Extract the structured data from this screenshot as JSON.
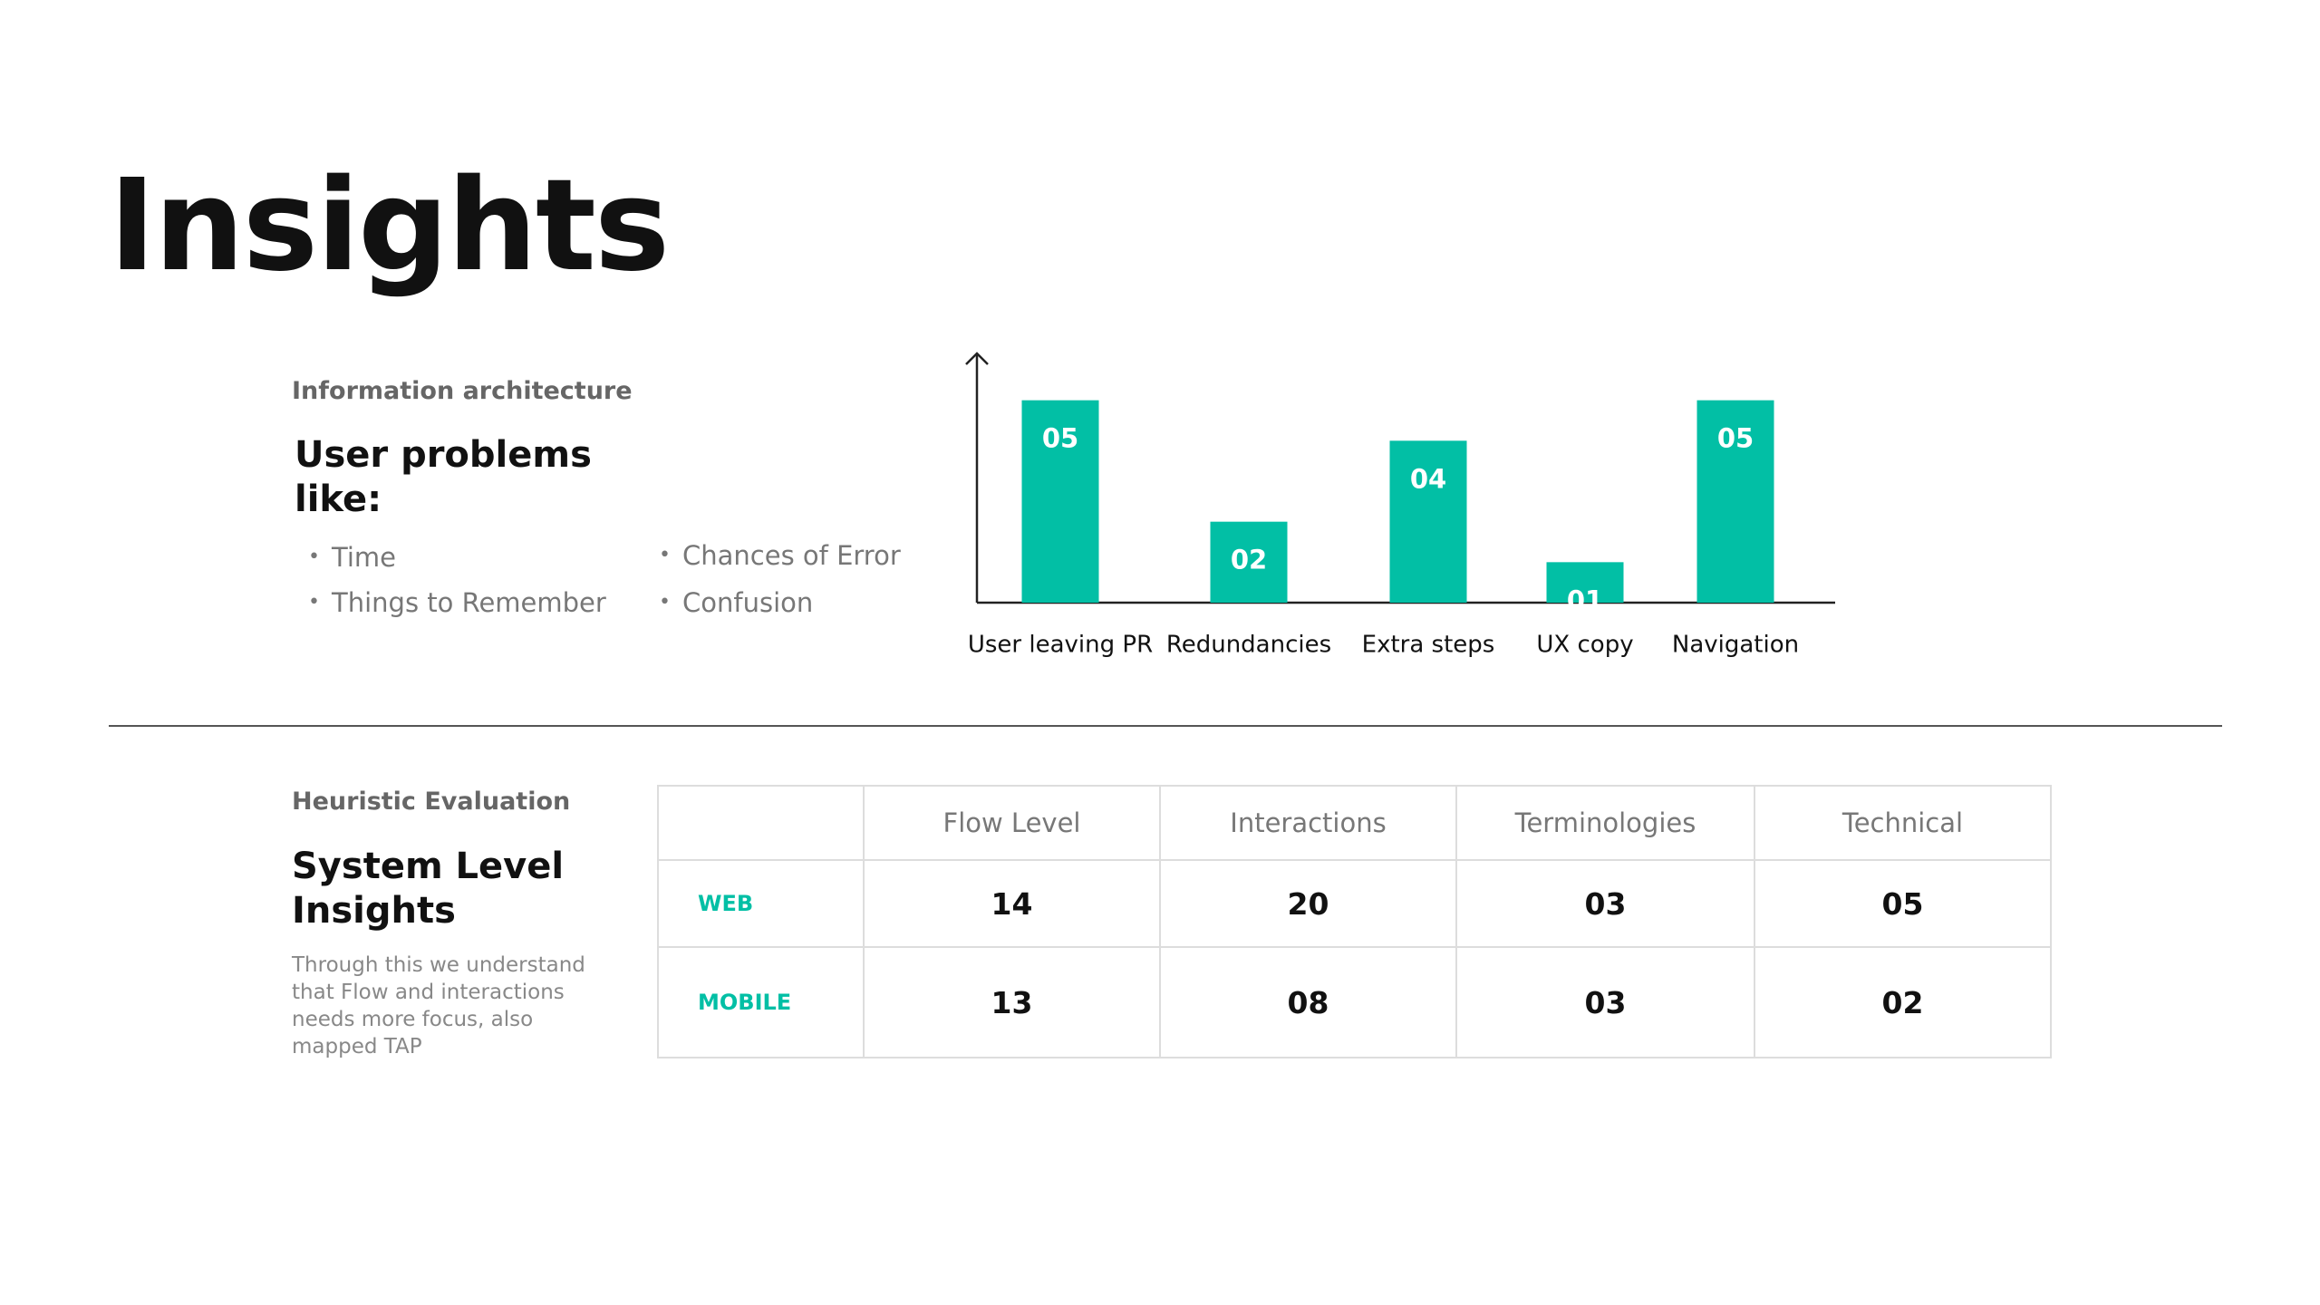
{
  "title": "Insights",
  "problems": {
    "eyebrow": "Information architecture",
    "heading": "User problems like:",
    "bullets": [
      "Time",
      "Things to Remember",
      "Chances of Error",
      "Confusion"
    ]
  },
  "chart_data": {
    "type": "bar",
    "categories": [
      "User leaving PR",
      "Redundancies",
      "Extra steps",
      "UX copy",
      "Navigation"
    ],
    "values": [
      5,
      2,
      4,
      1,
      5
    ],
    "value_labels": [
      "05",
      "02",
      "04",
      "01",
      "05"
    ],
    "color": "#02bfa5",
    "ylim": [
      0,
      6
    ]
  },
  "heuristic": {
    "eyebrow": "Heuristic Evaluation",
    "heading": "System Level Insights",
    "body": "Through this we understand that Flow and interactions needs more focus, also mapped TAP"
  },
  "table": {
    "columns": [
      "Flow Level",
      "Interactions",
      "Terminologies",
      "Technical"
    ],
    "rows": [
      {
        "label": "WEB",
        "values": [
          "14",
          "20",
          "03",
          "05"
        ]
      },
      {
        "label": "MOBILE",
        "values": [
          "13",
          "08",
          "03",
          "02"
        ]
      }
    ]
  }
}
